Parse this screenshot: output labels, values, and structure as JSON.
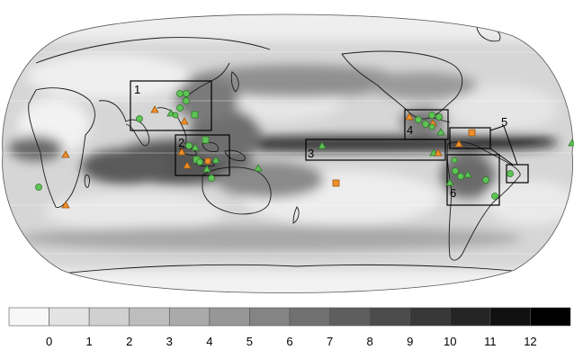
{
  "colorbar": {
    "ticks": [
      "0",
      "1",
      "2",
      "3",
      "4",
      "5",
      "6",
      "7",
      "8",
      "9",
      "10",
      "11",
      "12"
    ],
    "colors": [
      "#f7f7f7",
      "#e3e3e3",
      "#d0d0d0",
      "#bdbdbd",
      "#aaaaaa",
      "#979797",
      "#848484",
      "#717171",
      "#5e5e5e",
      "#4b4b4b",
      "#383838",
      "#252525",
      "#111111",
      "#000000"
    ]
  },
  "regions": [
    {
      "id": "1",
      "label": "1"
    },
    {
      "id": "2",
      "label": "2"
    },
    {
      "id": "3",
      "label": "3"
    },
    {
      "id": "4",
      "label": "4"
    },
    {
      "id": "5",
      "label": "5"
    },
    {
      "id": "6",
      "label": "6"
    }
  ],
  "marker_colors": {
    "green": "#5fc456",
    "orange": "#f0902a"
  }
}
